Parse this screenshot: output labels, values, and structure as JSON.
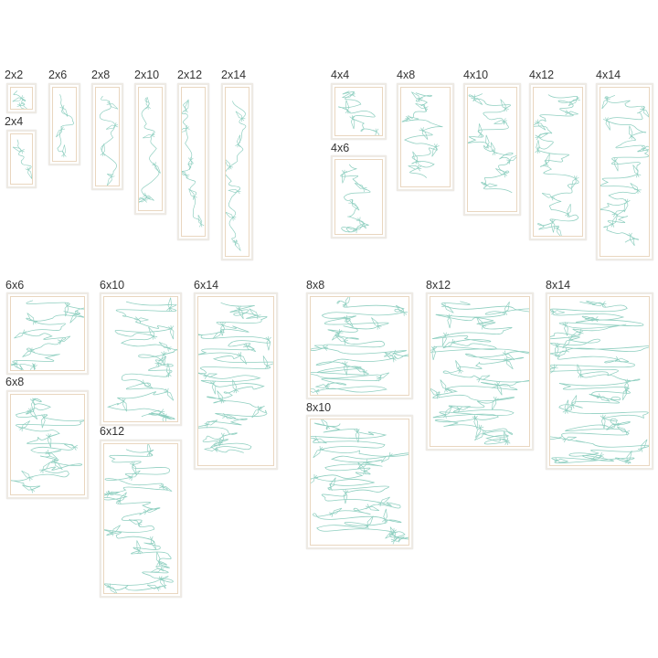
{
  "colors": {
    "stitch": "#8fcfc0",
    "inner_frame": "#e9d6bf",
    "outer_frame": "#eeeae4",
    "label": "#333333"
  },
  "blocks": [
    {
      "label": "2x2"
    },
    {
      "label": "2x4"
    },
    {
      "label": "2x6"
    },
    {
      "label": "2x8"
    },
    {
      "label": "2x10"
    },
    {
      "label": "2x12"
    },
    {
      "label": "2x14"
    },
    {
      "label": "4x4"
    },
    {
      "label": "4x6"
    },
    {
      "label": "4x8"
    },
    {
      "label": "4x10"
    },
    {
      "label": "4x12"
    },
    {
      "label": "4x14"
    },
    {
      "label": "6x6"
    },
    {
      "label": "6x8"
    },
    {
      "label": "6x10"
    },
    {
      "label": "6x12"
    },
    {
      "label": "6x14"
    },
    {
      "label": "8x8"
    },
    {
      "label": "8x10"
    },
    {
      "label": "8x12"
    },
    {
      "label": "8x14"
    }
  ]
}
